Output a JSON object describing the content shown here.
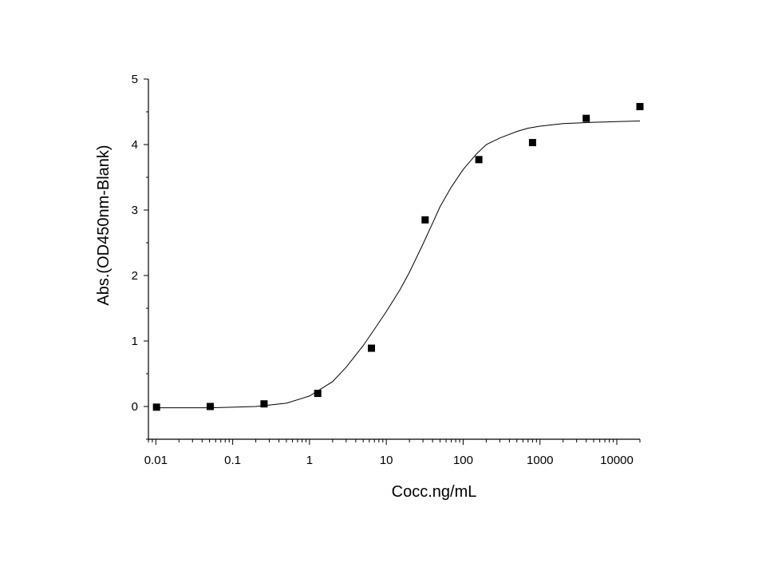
{
  "chart_data": {
    "type": "scatter",
    "title": "",
    "xlabel": "Cocc.ng/mL",
    "ylabel": "Abs.(OD450nm-Blank)",
    "x_scale": "log",
    "xlim": [
      0.008,
      20000
    ],
    "ylim": [
      -0.5,
      5
    ],
    "x_ticks": [
      0.01,
      0.1,
      1,
      10,
      100,
      1000,
      10000
    ],
    "x_tick_labels": [
      "0.01",
      "0.1",
      "1",
      "10",
      "100",
      "1000",
      "10000"
    ],
    "y_ticks": [
      0,
      1,
      2,
      3,
      4,
      5
    ],
    "y_tick_labels": [
      "0",
      "1",
      "2",
      "3",
      "4",
      "5"
    ],
    "grid": false,
    "legend": "none",
    "marker_color": "#000000",
    "curve_color": "#000000",
    "series": [
      {
        "name": "",
        "marker": "square",
        "x": [
          0.0102,
          0.051,
          0.256,
          1.28,
          6.4,
          32,
          160,
          800,
          4000,
          20000
        ],
        "y": [
          -0.01,
          0.0,
          0.04,
          0.2,
          0.89,
          2.85,
          3.77,
          4.03,
          4.4,
          4.58
        ]
      }
    ],
    "fit_curve": {
      "x": [
        0.01,
        0.02,
        0.05,
        0.1,
        0.2,
        0.5,
        1,
        2,
        3,
        5,
        7,
        10,
        15,
        20,
        30,
        40,
        50,
        70,
        100,
        150,
        200,
        300,
        500,
        700,
        1000,
        2000,
        5000,
        10000,
        20000
      ],
      "y": [
        -0.02,
        -0.02,
        -0.02,
        -0.01,
        0.0,
        0.05,
        0.16,
        0.38,
        0.6,
        0.93,
        1.18,
        1.45,
        1.78,
        2.05,
        2.48,
        2.8,
        3.05,
        3.35,
        3.62,
        3.86,
        4.0,
        4.1,
        4.2,
        4.25,
        4.28,
        4.32,
        4.34,
        4.35,
        4.36
      ]
    }
  }
}
